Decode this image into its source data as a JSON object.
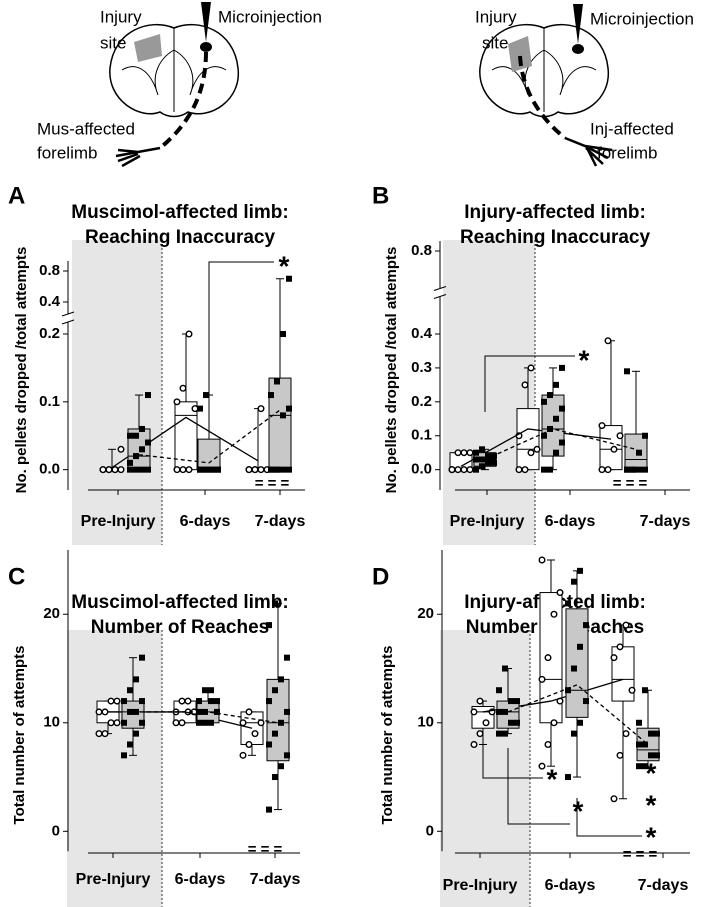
{
  "illustrations": [
    {
      "injury_label": [
        "Injury",
        "site"
      ],
      "injection_label": "Microinjection",
      "limb_label": [
        "Mus-affected",
        "forelimb"
      ]
    },
    {
      "injury_label": [
        "Injury",
        "site"
      ],
      "injection_label": "Microinjection",
      "limb_label": [
        "Inj-affected",
        "forelimb"
      ]
    }
  ],
  "chart_data": [
    {
      "type": "box",
      "panel": "A",
      "title": [
        "Muscimol-affected limb:",
        "Reaching Inaccuracy"
      ],
      "ylabel": "No. pellets dropped /total attempts",
      "categories": [
        "Pre-Injury",
        "6-days",
        "7-days"
      ],
      "ylim": [
        -0.03,
        0.8
      ],
      "ybreak": [
        0.2,
        0.4
      ],
      "yticks": [
        {
          "value": 0,
          "label": "0.0"
        },
        0.1,
        0.2,
        0.4,
        0.8
      ],
      "series": [
        {
          "marker": "circle",
          "color": "#ffffff",
          "line": "solid",
          "boxes": [
            {
              "min": 0,
              "q1": 0,
              "median": 0,
              "q3": 0,
              "max": 0.03,
              "points": [
                0,
                0,
                0,
                0,
                0,
                0,
                0,
                0.03
              ]
            },
            {
              "min": 0,
              "q1": 0,
              "median": 0.08,
              "q3": 0.1,
              "max": 0.2,
              "points": [
                0,
                0,
                0,
                0.09,
                0.1,
                0.12,
                0.2
              ]
            },
            {
              "min": 0,
              "q1": 0,
              "median": 0,
              "q3": 0,
              "max": 0.09,
              "points": [
                0,
                0,
                0,
                0,
                0,
                0,
                0.09
              ]
            }
          ],
          "means": [
            0.003,
            0.077,
            0.013
          ]
        },
        {
          "marker": "square",
          "color": "#c8c8c8",
          "line": "dashed",
          "boxes": [
            {
              "min": 0,
              "q1": 0,
              "median": 0.02,
              "q3": 0.06,
              "max": 0.11,
              "points": [
                0,
                0,
                0,
                0,
                0.01,
                0.02,
                0.03,
                0.04,
                0.05,
                0.05,
                0.06,
                0.11
              ]
            },
            {
              "min": 0,
              "q1": 0,
              "median": 0,
              "q3": 0.045,
              "max": 0.11,
              "points": [
                0,
                0,
                0,
                0,
                0,
                0,
                0,
                0,
                0.09,
                0.11
              ]
            },
            {
              "min": 0,
              "q1": 0,
              "median": 0.08,
              "q3": 0.135,
              "max": 0.7,
              "points": [
                0,
                0,
                0,
                0,
                0,
                0,
                0.08,
                0.09,
                0.11,
                0.13,
                0.2,
                0.7
              ]
            }
          ],
          "means": [
            0.022,
            0.01,
            0.088
          ]
        }
      ],
      "annotations": [
        "*",
        "= = ="
      ]
    },
    {
      "type": "box",
      "panel": "B",
      "title": [
        "Injury-affected limb:",
        "Reaching Inaccuracy"
      ],
      "ylabel": "No. pellets dropped /total attempts",
      "categories": [
        "Pre-Injury",
        "6-days",
        "7-days"
      ],
      "ylim": [
        -0.06,
        0.8
      ],
      "ybreak": [
        0.4,
        0.8
      ],
      "yticks": [
        {
          "value": 0,
          "label": "0.0"
        },
        0.1,
        0.2,
        0.3,
        0.4,
        0.8
      ],
      "series": [
        {
          "marker": "circle",
          "color": "#ffffff",
          "line": "solid",
          "boxes": [
            {
              "min": 0,
              "q1": 0,
              "median": 0,
              "q3": 0.05,
              "max": 0.05,
              "points": [
                0,
                0,
                0,
                0,
                0,
                0.05,
                0.05,
                0.05
              ]
            },
            {
              "min": 0,
              "q1": 0,
              "median": 0.06,
              "q3": 0.18,
              "max": 0.3,
              "points": [
                0,
                0,
                0.05,
                0.06,
                0.1,
                0.25,
                0.3
              ]
            },
            {
              "min": 0,
              "q1": 0,
              "median": 0.06,
              "q3": 0.13,
              "max": 0.38,
              "points": [
                0,
                0,
                0.06,
                0.1,
                0.13,
                0.38
              ]
            }
          ],
          "means": [
            0.01,
            0.12,
            0.09
          ]
        },
        {
          "marker": "square",
          "color": "#c8c8c8",
          "line": "dashed",
          "boxes": [
            {
              "min": 0,
              "q1": 0.01,
              "median": 0.03,
              "q3": 0.05,
              "max": 0.06,
              "points": [
                0,
                0.01,
                0.02,
                0.02,
                0.03,
                0.03,
                0.04,
                0.04,
                0.05,
                0.06
              ]
            },
            {
              "min": 0,
              "q1": 0.04,
              "median": 0.12,
              "q3": 0.22,
              "max": 0.3,
              "points": [
                0,
                0,
                0.05,
                0.08,
                0.1,
                0.12,
                0.15,
                0.18,
                0.2,
                0.22,
                0.25,
                0.3
              ]
            },
            {
              "min": 0,
              "q1": 0,
              "median": 0.03,
              "q3": 0.105,
              "max": 0.29,
              "points": [
                0,
                0,
                0,
                0,
                0,
                0,
                0.05,
                0.1,
                0.29
              ]
            }
          ],
          "means": [
            0.03,
            0.12,
            0.06
          ]
        }
      ],
      "annotations": [
        "*",
        "= = ="
      ]
    },
    {
      "type": "box",
      "panel": "C",
      "title": [
        "Muscimol-affected limb:",
        "Number of Reaches"
      ],
      "ylabel": "Total number of attempts",
      "categories": [
        "Pre-Injury",
        "6-days",
        "7-days"
      ],
      "ylim": [
        -2,
        25
      ],
      "yticks": [
        0,
        10,
        20
      ],
      "series": [
        {
          "marker": "circle",
          "color": "#ffffff",
          "line": "solid",
          "boxes": [
            {
              "min": 9,
              "q1": 10,
              "median": 11,
              "q3": 12,
              "max": 12,
              "points": [
                9,
                9,
                10,
                10,
                11,
                11,
                12,
                12
              ]
            },
            {
              "min": 10,
              "q1": 10,
              "median": 11,
              "q3": 12,
              "max": 12,
              "points": [
                10,
                10,
                11,
                11,
                11,
                12,
                12
              ]
            },
            {
              "min": 7,
              "q1": 8,
              "median": 10,
              "q3": 11,
              "max": 11,
              "points": [
                7,
                8,
                9,
                10,
                10,
                11
              ]
            }
          ],
          "means": [
            11,
            11,
            9.5
          ]
        },
        {
          "marker": "square",
          "color": "#c8c8c8",
          "line": "dashed",
          "boxes": [
            {
              "min": 7,
              "q1": 9.5,
              "median": 11,
              "q3": 12,
              "max": 16,
              "points": [
                7,
                8,
                9,
                10,
                10,
                11,
                11,
                12,
                12,
                13,
                14,
                16
              ]
            },
            {
              "min": 10,
              "q1": 10,
              "median": 11,
              "q3": 12,
              "max": 13,
              "points": [
                10,
                10,
                10,
                11,
                11,
                11,
                12,
                12,
                12,
                13,
                13
              ]
            },
            {
              "min": 2,
              "q1": 6.5,
              "median": 10,
              "q3": 14,
              "max": 21,
              "points": [
                2,
                5,
                6,
                7,
                8,
                9,
                10,
                11,
                12,
                13,
                14,
                16,
                19,
                21
              ]
            }
          ],
          "means": [
            11,
            11,
            10
          ]
        }
      ],
      "annotations": [
        "= = ="
      ]
    },
    {
      "type": "box",
      "panel": "D",
      "title": [
        "Injury-affected limb:",
        "Number of Reaches"
      ],
      "ylabel": "Total number of attempts",
      "categories": [
        "Pre-Injury",
        "6-days",
        "7-days"
      ],
      "ylim": [
        -2,
        25
      ],
      "yticks": [
        0,
        10,
        20
      ],
      "series": [
        {
          "marker": "circle",
          "color": "#ffffff",
          "line": "solid",
          "boxes": [
            {
              "min": 8,
              "q1": 9.5,
              "median": 11,
              "q3": 11.5,
              "max": 12,
              "points": [
                8,
                9,
                10,
                11,
                11,
                12
              ]
            },
            {
              "min": 6,
              "q1": 10,
              "median": 14,
              "q3": 22,
              "max": 25,
              "points": [
                6,
                8,
                10,
                12,
                14,
                16,
                20,
                22,
                25
              ]
            },
            {
              "min": 3,
              "q1": 12,
              "median": 14,
              "q3": 17,
              "max": 19,
              "points": [
                3,
                7,
                9,
                13,
                16,
                17,
                19
              ]
            }
          ],
          "means": [
            11,
            12,
            14
          ]
        },
        {
          "marker": "square",
          "color": "#c8c8c8",
          "line": "dashed",
          "boxes": [
            {
              "min": 9,
              "q1": 9.5,
              "median": 11,
              "q3": 12,
              "max": 15,
              "points": [
                9,
                9,
                10,
                10,
                11,
                11,
                12,
                12,
                13,
                15
              ]
            },
            {
              "min": 5,
              "q1": 10.5,
              "median": 13,
              "q3": 20.5,
              "max": 24,
              "points": [
                5,
                9,
                10,
                12,
                13,
                15,
                17,
                19,
                21,
                23,
                24
              ]
            },
            {
              "min": 6,
              "q1": 6.5,
              "median": 7.5,
              "q3": 9.5,
              "max": 13,
              "points": [
                6,
                6,
                7,
                7,
                8,
                8,
                9,
                9,
                10,
                13
              ]
            }
          ],
          "means": [
            11,
            13.5,
            8
          ]
        }
      ],
      "annotations": [
        "*",
        "*",
        "*",
        "*",
        "*",
        "= = ="
      ]
    }
  ]
}
